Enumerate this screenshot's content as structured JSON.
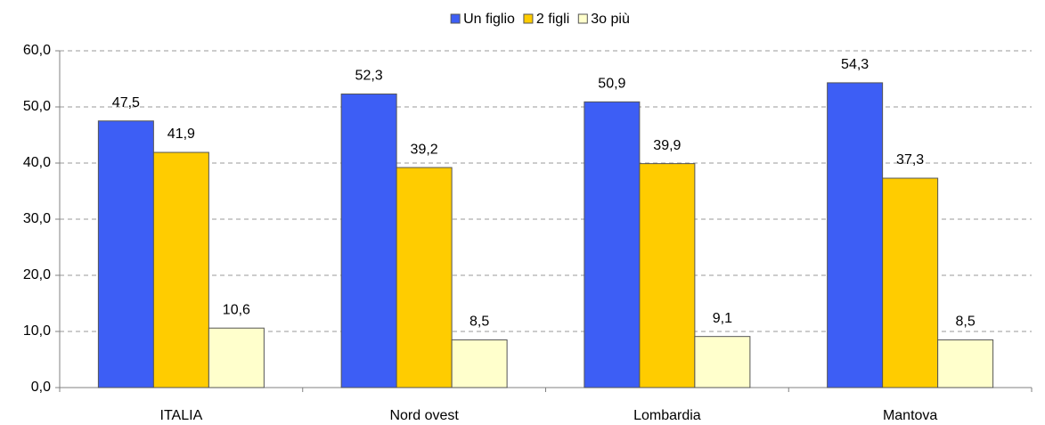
{
  "chart_data": {
    "type": "bar",
    "categories": [
      "ITALIA",
      "Nord ovest",
      "Lombardia",
      "Mantova"
    ],
    "series": [
      {
        "name": "Un figlio",
        "color": "#3d5ef5",
        "values": [
          47.5,
          52.3,
          50.9,
          54.3
        ],
        "value_labels": [
          "47,5",
          "52,3",
          "50,9",
          "54,3"
        ]
      },
      {
        "name": "2 figli",
        "color": "#ffcc00",
        "values": [
          41.9,
          39.2,
          39.9,
          37.3
        ],
        "value_labels": [
          "41,9",
          "39,2",
          "39,9",
          "37,3"
        ]
      },
      {
        "name": "3o più",
        "color": "#ffffcc",
        "values": [
          10.6,
          8.5,
          9.1,
          8.5
        ],
        "value_labels": [
          "10,6",
          "8,5",
          "9,1",
          "8,5"
        ]
      }
    ],
    "ylim": [
      0,
      60
    ],
    "yticks": [
      {
        "value": 0,
        "label": "0,0"
      },
      {
        "value": 10,
        "label": "10,0"
      },
      {
        "value": 20,
        "label": "20,0"
      },
      {
        "value": 30,
        "label": "30,0"
      },
      {
        "value": 40,
        "label": "40,0"
      },
      {
        "value": 50,
        "label": "50,0"
      },
      {
        "value": 60,
        "label": "60,0"
      }
    ],
    "grid": true,
    "legend": "top"
  }
}
